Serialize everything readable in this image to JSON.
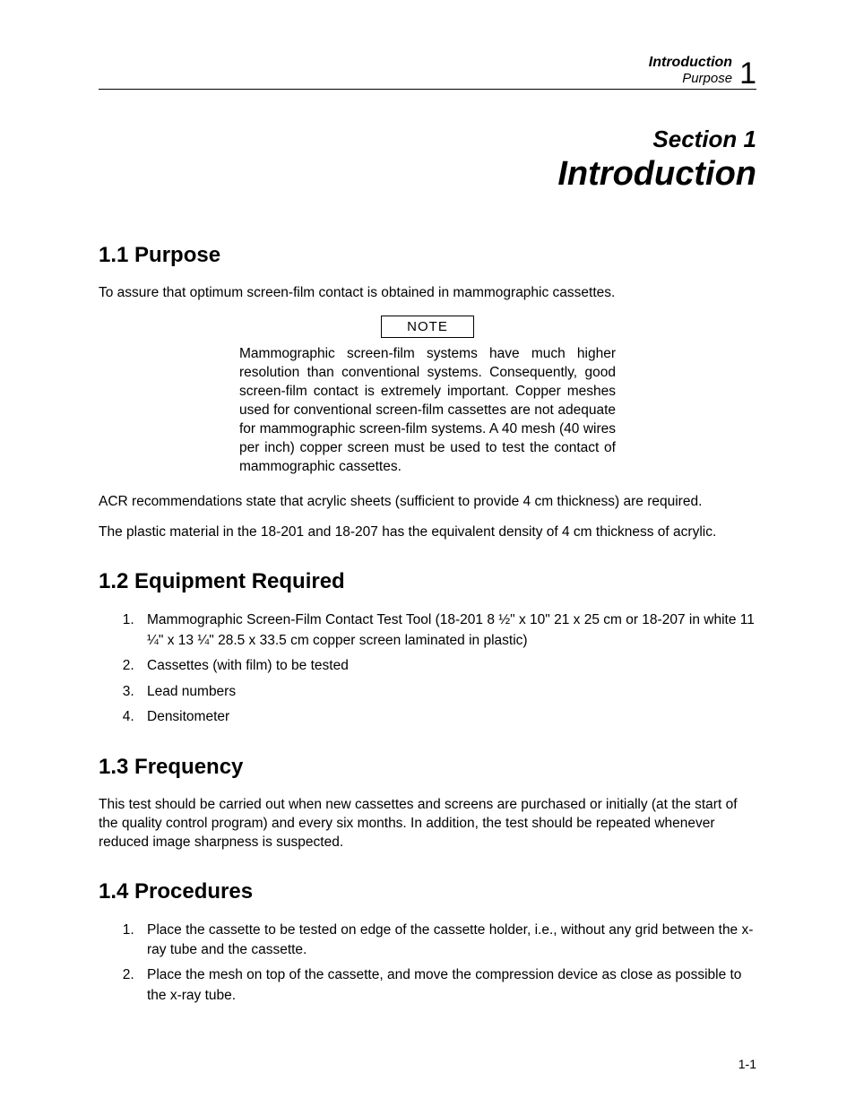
{
  "header": {
    "chapter_title": "Introduction",
    "subtitle": "Purpose",
    "chapter_number": "1"
  },
  "section": {
    "label": "Section 1",
    "title": "Introduction"
  },
  "s1_1": {
    "heading": "1.1 Purpose",
    "p1": "To assure that optimum screen-film contact is obtained in mammographic cassettes.",
    "note_label": "NOTE",
    "note_body": "Mammographic screen-film systems have much higher resolution than conventional systems. Consequently, good screen-film contact is extremely important. Copper meshes used for conventional screen-film cassettes are not adequate for mammographic screen-film systems. A 40 mesh (40 wires per inch) copper screen must be used to test the contact of mammographic cassettes.",
    "p2": "ACR recommendations state that acrylic sheets (sufficient to provide 4 cm thickness) are required.",
    "p3": "The plastic material in the 18-201 and 18-207 has the equivalent density of 4 cm thickness of acrylic."
  },
  "s1_2": {
    "heading": "1.2 Equipment Required",
    "items": [
      "Mammographic Screen-Film Contact Test Tool (18-201 8 ½\" x 10\" 21 x 25 cm or 18-207 in white 11 ¼\" x 13 ¼\" 28.5 x 33.5 cm copper screen laminated in plastic)",
      "Cassettes (with film) to be tested",
      "Lead numbers",
      "Densitometer"
    ]
  },
  "s1_3": {
    "heading": "1.3 Frequency",
    "p1": "This test should be carried out when new cassettes and screens are purchased or initially (at the start of the quality control program) and every six months. In addition, the test should be repeated whenever reduced image sharpness is suspected."
  },
  "s1_4": {
    "heading": "1.4 Procedures",
    "items": [
      "Place the cassette to be tested on edge of the cassette holder, i.e., without any grid between the x-ray tube and the cassette.",
      "Place the mesh on top of the cassette, and move the compression device as close as possible to the x-ray tube."
    ]
  },
  "footer": {
    "page_number": "1-1"
  }
}
